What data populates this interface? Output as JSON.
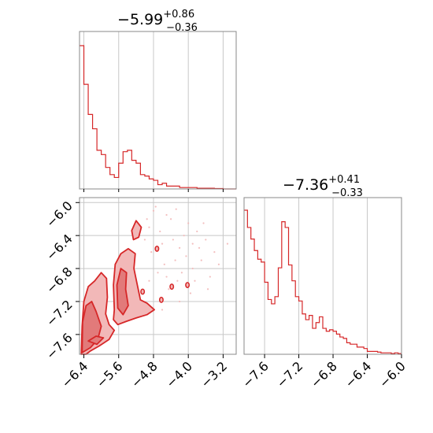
{
  "colors": {
    "series": "#d62728",
    "fill_light": "#f2b8b8",
    "fill_mid": "#e27a7a",
    "grid": "#c8c8c8",
    "frame": "#888888",
    "text": "#000000"
  },
  "chart_data": [
    {
      "type": "histogram",
      "panel": "marginal-param-1",
      "title": {
        "median": "−5.99",
        "upper": "+0.86",
        "lower": "−0.36"
      },
      "bin_width": 0.1,
      "x": [
        -6.45,
        -6.35,
        -6.25,
        -6.15,
        -6.05,
        -5.95,
        -5.85,
        -5.75,
        -5.65,
        -5.55,
        -5.45,
        -5.35,
        -5.25,
        -5.15,
        -5.05,
        -4.95,
        -4.85,
        -4.75,
        -4.65,
        -4.55,
        -4.45,
        -4.35,
        -4.25,
        -4.15,
        -4.05,
        -3.95,
        -3.85,
        -3.75,
        -3.65,
        -3.55,
        -3.45,
        -3.35,
        -3.25,
        -3.15,
        -3.05,
        -2.95
      ],
      "values": [
        100,
        73,
        52,
        42,
        27,
        24,
        15,
        10,
        8,
        18,
        26,
        27,
        20,
        18,
        10,
        9,
        7,
        6,
        3,
        4,
        2,
        2,
        2,
        1,
        1,
        1,
        1,
        0.5,
        0.5,
        0.5,
        0.5,
        0.3,
        0.3,
        0,
        0,
        0
      ],
      "xlim": [
        -6.5,
        -2.9
      ],
      "xgrid": [
        -6.4,
        -5.6,
        -4.8,
        -4.0,
        -3.2
      ]
    },
    {
      "type": "histogram",
      "panel": "marginal-param-2",
      "title": {
        "median": "−7.36",
        "upper": "+0.41",
        "lower": "−0.33"
      },
      "bin_width": 0.04,
      "x": [
        -7.82,
        -7.78,
        -7.74,
        -7.7,
        -7.66,
        -7.62,
        -7.58,
        -7.54,
        -7.5,
        -7.46,
        -7.42,
        -7.38,
        -7.34,
        -7.3,
        -7.26,
        -7.22,
        -7.18,
        -7.14,
        -7.1,
        -7.06,
        -7.02,
        -6.98,
        -6.94,
        -6.9,
        -6.86,
        -6.82,
        -6.78,
        -6.74,
        -6.7,
        -6.66,
        -6.62,
        -6.58,
        -6.54,
        -6.5,
        -6.46,
        -6.42,
        -6.38,
        -6.34,
        -6.3,
        -6.26,
        -6.22,
        -6.18,
        -6.14,
        -6.1,
        -6.06,
        -6.02
      ],
      "values": [
        100,
        88,
        80,
        72,
        66,
        64,
        50,
        38,
        35,
        40,
        60,
        92,
        88,
        62,
        51,
        40,
        37,
        28,
        24,
        27,
        18,
        22,
        26,
        18,
        16,
        17,
        16,
        14,
        12,
        11,
        8,
        7,
        7,
        5,
        5,
        4,
        2,
        2,
        2,
        1.5,
        1,
        1,
        1,
        0.5,
        1,
        0.5
      ],
      "xlim": [
        -7.84,
        -6.0
      ],
      "xticks": [
        "−7.6",
        "−7.2",
        "−6.8",
        "−6.4",
        "−6.0"
      ],
      "xtick_values": [
        -7.6,
        -7.2,
        -6.8,
        -6.4,
        -6.0
      ]
    },
    {
      "type": "contour",
      "panel": "joint-param-1-vs-param-2",
      "xlim": [
        -6.5,
        -2.9
      ],
      "ylim": [
        -7.84,
        -5.94
      ],
      "xticks": [
        "−6.4",
        "−5.6",
        "−4.8",
        "−4.0",
        "−3.2"
      ],
      "xtick_values": [
        -6.4,
        -5.6,
        -4.8,
        -4.0,
        -3.2
      ],
      "yticks": [
        "−6.0",
        "−6.4",
        "−6.8",
        "−7.2",
        "−7.6"
      ],
      "ytick_values": [
        -6.0,
        -6.4,
        -6.8,
        -7.2,
        -7.6
      ],
      "contour_outer": [
        [
          [
            -6.46,
            -7.84
          ],
          [
            -6.44,
            -7.5
          ],
          [
            -6.4,
            -7.2
          ],
          [
            -6.3,
            -7.02
          ],
          [
            -6.15,
            -6.95
          ],
          [
            -6.0,
            -6.85
          ],
          [
            -5.88,
            -6.92
          ],
          [
            -5.86,
            -7.15
          ],
          [
            -5.9,
            -7.35
          ],
          [
            -5.82,
            -7.48
          ],
          [
            -5.7,
            -7.55
          ],
          [
            -5.82,
            -7.66
          ],
          [
            -6.05,
            -7.74
          ],
          [
            -6.25,
            -7.8
          ],
          [
            -6.35,
            -7.84
          ]
        ],
        [
          [
            -5.7,
            -7.3
          ],
          [
            -5.72,
            -7.0
          ],
          [
            -5.68,
            -6.75
          ],
          [
            -5.55,
            -6.62
          ],
          [
            -5.38,
            -6.56
          ],
          [
            -5.22,
            -6.62
          ],
          [
            -5.25,
            -6.8
          ],
          [
            -5.18,
            -6.98
          ],
          [
            -5.1,
            -7.18
          ],
          [
            -4.95,
            -7.22
          ],
          [
            -4.78,
            -7.3
          ],
          [
            -4.95,
            -7.36
          ],
          [
            -5.2,
            -7.4
          ],
          [
            -5.42,
            -7.44
          ],
          [
            -5.62,
            -7.48
          ],
          [
            -5.72,
            -7.42
          ]
        ],
        [
          [
            -5.3,
            -6.34
          ],
          [
            -5.2,
            -6.22
          ],
          [
            -5.08,
            -6.3
          ],
          [
            -5.14,
            -6.42
          ],
          [
            -5.26,
            -6.45
          ]
        ]
      ],
      "contour_inner": [
        [
          [
            -6.44,
            -7.82
          ],
          [
            -6.43,
            -7.45
          ],
          [
            -6.35,
            -7.25
          ],
          [
            -6.22,
            -7.2
          ],
          [
            -6.12,
            -7.32
          ],
          [
            -6.0,
            -7.5
          ],
          [
            -6.08,
            -7.66
          ],
          [
            -6.25,
            -7.76
          ]
        ],
        [
          [
            -5.62,
            -7.28
          ],
          [
            -5.64,
            -7.0
          ],
          [
            -5.55,
            -6.8
          ],
          [
            -5.42,
            -6.85
          ],
          [
            -5.44,
            -7.05
          ],
          [
            -5.38,
            -7.25
          ],
          [
            -5.5,
            -7.36
          ]
        ],
        [
          [
            -6.3,
            -7.68
          ],
          [
            -6.12,
            -7.62
          ],
          [
            -5.95,
            -7.64
          ],
          [
            -6.1,
            -7.72
          ]
        ]
      ],
      "outliers": [
        [
          -4.72,
          -6.56
        ],
        [
          -4.38,
          -7.02
        ],
        [
          -4.02,
          -7.0
        ],
        [
          -5.05,
          -7.08
        ],
        [
          -4.62,
          -7.18
        ]
      ],
      "scatter": [
        [
          -4.9,
          -6.3
        ],
        [
          -4.6,
          -6.5
        ],
        [
          -4.3,
          -6.7
        ],
        [
          -4.5,
          -6.9
        ],
        [
          -4.1,
          -6.4
        ],
        [
          -3.9,
          -6.8
        ],
        [
          -3.7,
          -6.7
        ],
        [
          -3.5,
          -6.9
        ],
        [
          -3.3,
          -6.75
        ],
        [
          -4.8,
          -6.1
        ],
        [
          -4.4,
          -6.2
        ],
        [
          -4.2,
          -6.55
        ],
        [
          -4.0,
          -6.25
        ],
        [
          -3.8,
          -6.35
        ],
        [
          -3.6,
          -6.45
        ],
        [
          -4.7,
          -6.85
        ],
        [
          -4.45,
          -7.05
        ],
        [
          -4.25,
          -6.95
        ],
        [
          -3.95,
          -7.1
        ],
        [
          -3.4,
          -6.6
        ],
        [
          -4.85,
          -6.6
        ],
        [
          -4.55,
          -6.75
        ],
        [
          -4.15,
          -6.85
        ],
        [
          -3.75,
          -6.55
        ],
        [
          -4.65,
          -6.35
        ],
        [
          -4.35,
          -6.45
        ],
        [
          -4.05,
          -6.65
        ],
        [
          -3.85,
          -6.95
        ],
        [
          -4.9,
          -6.95
        ],
        [
          -5.0,
          -6.45
        ],
        [
          -4.75,
          -6.05
        ],
        [
          -4.5,
          -6.15
        ],
        [
          -3.65,
          -6.25
        ],
        [
          -3.1,
          -6.5
        ],
        [
          -4.95,
          -6.2
        ],
        [
          -4.28,
          -6.08
        ],
        [
          -3.55,
          -7.05
        ],
        [
          -4.6,
          -7.3
        ],
        [
          -4.2,
          -7.2
        ],
        [
          -3.9,
          -6.5
        ]
      ]
    }
  ]
}
